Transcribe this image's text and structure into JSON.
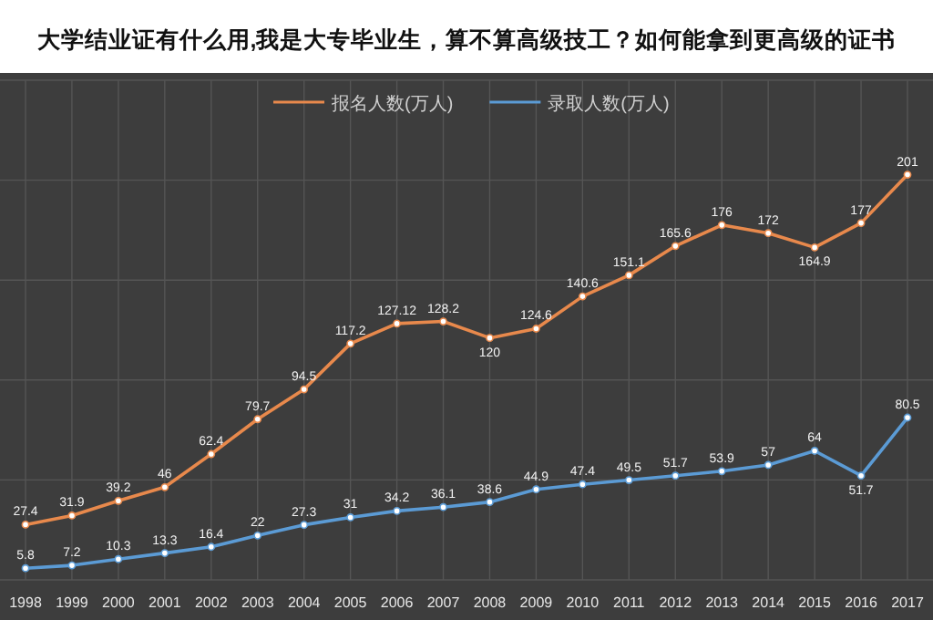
{
  "chart_data": {
    "type": "line",
    "title": "大学结业证有什么用,我是大专毕业生，算不算高级技工？如何能拿到更高级的证书",
    "categories": [
      "1998",
      "1999",
      "2000",
      "2001",
      "2002",
      "2003",
      "2004",
      "2005",
      "2006",
      "2007",
      "2008",
      "2009",
      "2010",
      "2011",
      "2012",
      "2013",
      "2014",
      "2015",
      "2016",
      "2017"
    ],
    "series": [
      {
        "name": "报名人数(万人)",
        "color": "#e8894c",
        "values": [
          27.4,
          31.9,
          39.2,
          46,
          62.4,
          79.7,
          94.5,
          117.2,
          127.12,
          128.2,
          120,
          124.6,
          140.6,
          151.1,
          165.6,
          176,
          172,
          164.9,
          177,
          201
        ]
      },
      {
        "name": "录取人数(万人)",
        "color": "#5b9bd5",
        "values": [
          5.8,
          7.2,
          10.3,
          13.3,
          16.4,
          22,
          27.3,
          31,
          34.2,
          36.1,
          38.6,
          44.9,
          47.4,
          49.5,
          51.7,
          53.9,
          57,
          64,
          51.7,
          80.5
        ]
      }
    ],
    "data_labels": true,
    "grid": true,
    "legend": "top",
    "marker": "circle"
  }
}
